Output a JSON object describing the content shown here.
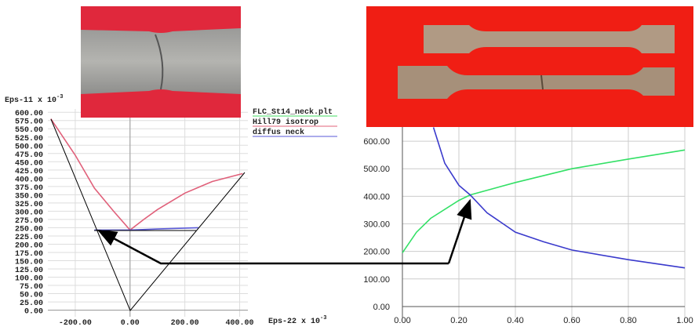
{
  "chart_data": [
    {
      "type": "line",
      "ylabel": "Eps-11  x 10",
      "ylabel_exp": "-3",
      "xlabel": "Eps-22  x 10",
      "xlabel_exp": "-3",
      "xlim": [
        -300,
        430
      ],
      "ylim": [
        -20,
        610
      ],
      "xticks": [
        {
          "value": -200,
          "label": "-200.00"
        },
        {
          "value": 0,
          "label": "0.00"
        },
        {
          "value": 200,
          "label": "200.00"
        },
        {
          "value": 400,
          "label": "400.00"
        }
      ],
      "yticks": [
        {
          "value": 0,
          "label": "0.00"
        },
        {
          "value": 25,
          "label": "25.00"
        },
        {
          "value": 50,
          "label": "50.00"
        },
        {
          "value": 75,
          "label": "75.00"
        },
        {
          "value": 100,
          "label": "100.00"
        },
        {
          "value": 125,
          "label": "125.00"
        },
        {
          "value": 150,
          "label": "150.00"
        },
        {
          "value": 175,
          "label": "175.00"
        },
        {
          "value": 200,
          "label": "200.00"
        },
        {
          "value": 225,
          "label": "225.00"
        },
        {
          "value": 250,
          "label": "250.00"
        },
        {
          "value": 275,
          "label": "275.00"
        },
        {
          "value": 300,
          "label": "300.00"
        },
        {
          "value": 325,
          "label": "325.00"
        },
        {
          "value": 350,
          "label": "350.00"
        },
        {
          "value": 375,
          "label": "375.00"
        },
        {
          "value": 400,
          "label": "400.00"
        },
        {
          "value": 425,
          "label": "425.00"
        },
        {
          "value": 450,
          "label": "450.00"
        },
        {
          "value": 475,
          "label": "475.00"
        },
        {
          "value": 500,
          "label": "500.00"
        },
        {
          "value": 525,
          "label": "525.00"
        },
        {
          "value": 550,
          "label": "550.00"
        },
        {
          "value": 575,
          "label": "575.00"
        },
        {
          "value": 600,
          "label": "600.00"
        }
      ],
      "grid": true,
      "series": [
        {
          "name": "FLC_St14_neck.plt",
          "color": "#44dd66",
          "x": [],
          "y": []
        },
        {
          "name": "Hill79 isotrop",
          "color": "#e0607a",
          "x": [
            -289,
            -200,
            -130,
            -60,
            0,
            50,
            100,
            200,
            300,
            411
          ],
          "y": [
            580,
            470,
            370,
            300,
            243,
            275,
            305,
            355,
            390,
            414
          ]
        },
        {
          "name": "diffus neck",
          "color": "#5a5ad8",
          "x": [
            -130,
            0,
            100,
            249
          ],
          "y": [
            243,
            243,
            246,
            250
          ]
        }
      ]
    },
    {
      "type": "line",
      "xlim": [
        0,
        1
      ],
      "ylim": [
        -40,
        660
      ],
      "xticks": [
        {
          "value": 0,
          "label": "0.00"
        },
        {
          "value": 0.2,
          "label": "0.20"
        },
        {
          "value": 0.4,
          "label": "0.40"
        },
        {
          "value": 0.6,
          "label": "0.60"
        },
        {
          "value": 0.8,
          "label": "0.80"
        },
        {
          "value": 1,
          "label": "1.00"
        }
      ],
      "yticks": [
        {
          "value": 0,
          "label": "0.00"
        },
        {
          "value": 100,
          "label": "100.00"
        },
        {
          "value": 200,
          "label": "200.00"
        },
        {
          "value": 300,
          "label": "300.00"
        },
        {
          "value": 400,
          "label": "400.00"
        },
        {
          "value": 500,
          "label": "500.00"
        },
        {
          "value": 600,
          "label": "600.00"
        }
      ],
      "grid": true,
      "series": [
        {
          "color": "#33e066",
          "x": [
            0,
            0.05,
            0.1,
            0.2,
            0.24,
            0.4,
            0.6,
            0.8,
            1.0
          ],
          "y": [
            195,
            270,
            320,
            385,
            405,
            450,
            500,
            535,
            568
          ]
        },
        {
          "color": "#3a3acc",
          "x": [
            0.11,
            0.15,
            0.2,
            0.24,
            0.3,
            0.4,
            0.5,
            0.6,
            0.8,
            1.0
          ],
          "y": [
            650,
            520,
            440,
            405,
            340,
            270,
            235,
            205,
            170,
            140
          ]
        }
      ]
    }
  ]
}
